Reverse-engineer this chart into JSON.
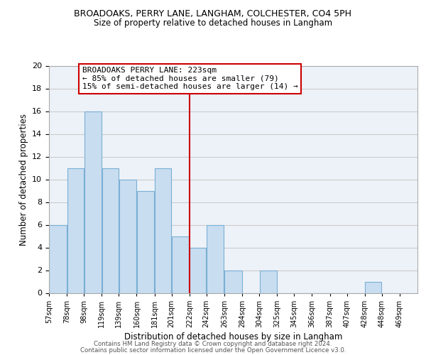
{
  "title": "BROADOAKS, PERRY LANE, LANGHAM, COLCHESTER, CO4 5PH",
  "subtitle": "Size of property relative to detached houses in Langham",
  "xlabel": "Distribution of detached houses by size in Langham",
  "ylabel": "Number of detached properties",
  "bar_left_edges": [
    57,
    78,
    98,
    119,
    139,
    160,
    181,
    201,
    222,
    242,
    263,
    284,
    304,
    325,
    345,
    366,
    387,
    407,
    428,
    448
  ],
  "bar_widths": [
    21,
    20,
    21,
    20,
    21,
    21,
    20,
    21,
    20,
    21,
    21,
    20,
    21,
    20,
    21,
    21,
    20,
    21,
    20,
    21
  ],
  "bar_heights": [
    6,
    11,
    16,
    11,
    10,
    9,
    11,
    5,
    4,
    6,
    2,
    0,
    2,
    0,
    0,
    0,
    0,
    0,
    1,
    0
  ],
  "bar_color": "#c8ddf0",
  "bar_edgecolor": "#7aafd4",
  "tick_labels": [
    "57sqm",
    "78sqm",
    "98sqm",
    "119sqm",
    "139sqm",
    "160sqm",
    "181sqm",
    "201sqm",
    "222sqm",
    "242sqm",
    "263sqm",
    "284sqm",
    "304sqm",
    "325sqm",
    "345sqm",
    "366sqm",
    "387sqm",
    "407sqm",
    "428sqm",
    "448sqm",
    "469sqm"
  ],
  "vline_x": 222,
  "vline_color": "#cc0000",
  "annotation_title": "BROADOAKS PERRY LANE: 223sqm",
  "annotation_line1": "← 85% of detached houses are smaller (79)",
  "annotation_line2": "15% of semi-detached houses are larger (14) →",
  "ylim": [
    0,
    20
  ],
  "yticks": [
    0,
    2,
    4,
    6,
    8,
    10,
    12,
    14,
    16,
    18,
    20
  ],
  "grid_color": "#cccccc",
  "background_color": "#edf2f8",
  "footer_line1": "Contains HM Land Registry data © Crown copyright and database right 2024.",
  "footer_line2": "Contains public sector information licensed under the Open Government Licence v3.0."
}
